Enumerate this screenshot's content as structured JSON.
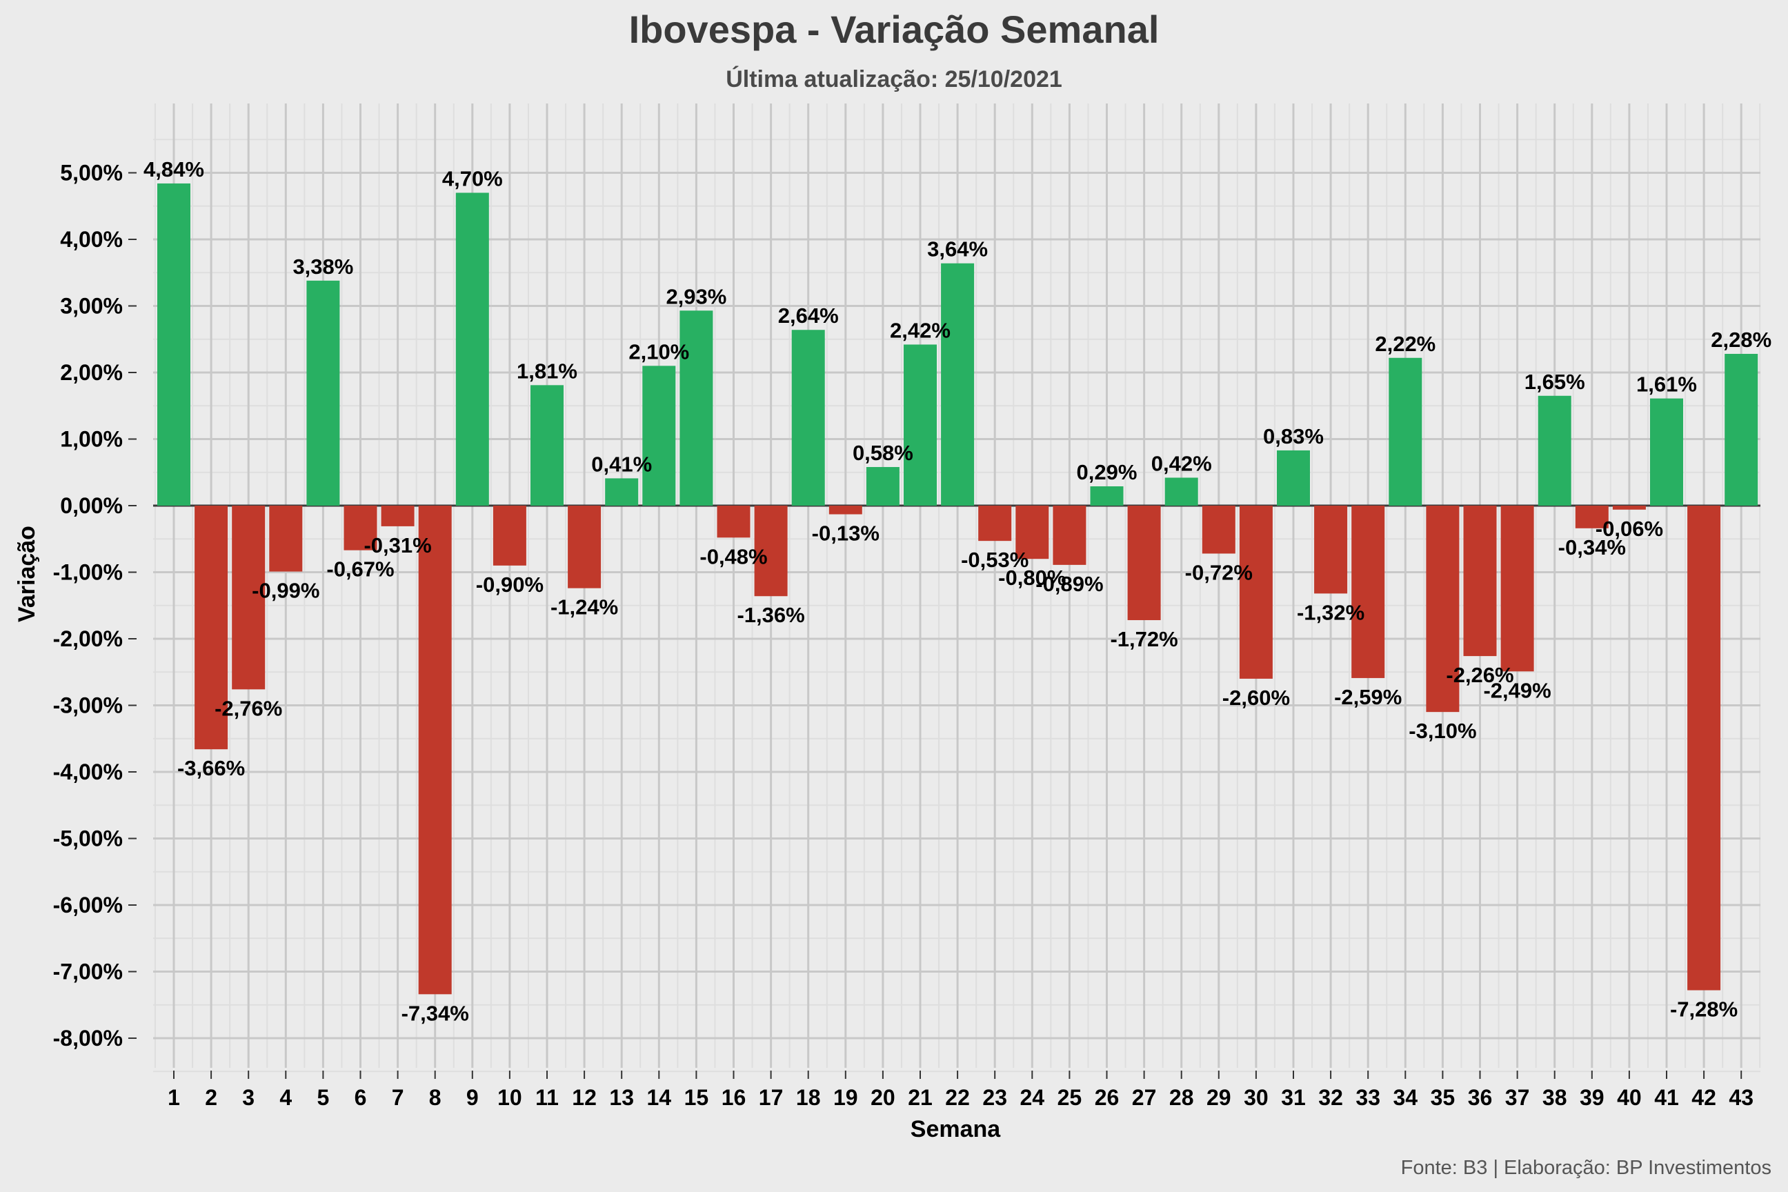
{
  "colors": {
    "background": "#ebebeb",
    "grid_major": "#c8c8c8",
    "grid_minor": "#dedede",
    "zero_line": "#3a3a3a",
    "positive": "#28b062",
    "negative": "#c0392b"
  },
  "chart_data": {
    "type": "bar",
    "title": "Ibovespa - Variação Semanal",
    "subtitle": "Última atualização: 25/10/2021",
    "xlabel": "Semana",
    "ylabel": "Variação",
    "caption": "Fonte: B3 | Elaboração: BP Investimentos",
    "ylim": [
      -8.5,
      6.0
    ],
    "grid": true,
    "legend": "none",
    "y_ticks": [
      5,
      4,
      3,
      2,
      1,
      0,
      -1,
      -2,
      -3,
      -4,
      -5,
      -6,
      -7,
      -8
    ],
    "y_tick_labels": [
      "5,00%",
      "4,00%",
      "3,00%",
      "2,00%",
      "1,00%",
      "0,00%",
      "-1,00%",
      "-2,00%",
      "-3,00%",
      "-4,00%",
      "-5,00%",
      "-6,00%",
      "-7,00%",
      "-8,00%"
    ],
    "categories": [
      "1",
      "2",
      "3",
      "4",
      "5",
      "6",
      "7",
      "8",
      "9",
      "10",
      "11",
      "12",
      "13",
      "14",
      "15",
      "16",
      "17",
      "18",
      "19",
      "20",
      "21",
      "22",
      "23",
      "24",
      "25",
      "26",
      "27",
      "28",
      "29",
      "30",
      "31",
      "32",
      "33",
      "34",
      "35",
      "36",
      "37",
      "38",
      "39",
      "40",
      "41",
      "42",
      "43"
    ],
    "values": [
      4.84,
      -3.66,
      -2.76,
      -0.99,
      3.38,
      -0.67,
      -0.31,
      -7.34,
      4.7,
      -0.9,
      1.81,
      -1.24,
      0.41,
      2.1,
      2.93,
      -0.48,
      -1.36,
      2.64,
      -0.13,
      0.58,
      2.42,
      3.64,
      -0.53,
      -0.8,
      -0.89,
      0.29,
      -1.72,
      0.42,
      -0.72,
      -2.6,
      0.83,
      -1.32,
      -2.59,
      2.22,
      -3.1,
      -2.26,
      -2.49,
      1.65,
      -0.34,
      -0.06,
      1.61,
      -7.28,
      2.28
    ],
    "labels": [
      "4,84%",
      "-3,66%",
      "-2,76%",
      "-0,99%",
      "3,38%",
      "-0,67%",
      "-0,31%",
      "-7,34%",
      "4,70%",
      "-0,90%",
      "1,81%",
      "-1,24%",
      "0,41%",
      "2,10%",
      "2,93%",
      "-0,48%",
      "-1,36%",
      "2,64%",
      "-0,13%",
      "0,58%",
      "2,42%",
      "3,64%",
      "-0,53%",
      "-0,80%",
      "-0,89%",
      "0,29%",
      "-1,72%",
      "0,42%",
      "-0,72%",
      "-2,60%",
      "0,83%",
      "-1,32%",
      "-2,59%",
      "2,22%",
      "-3,10%",
      "-2,26%",
      "-2,49%",
      "1,65%",
      "-0,34%",
      "-0,06%",
      "1,61%",
      "-7,28%",
      "2,28%"
    ]
  }
}
